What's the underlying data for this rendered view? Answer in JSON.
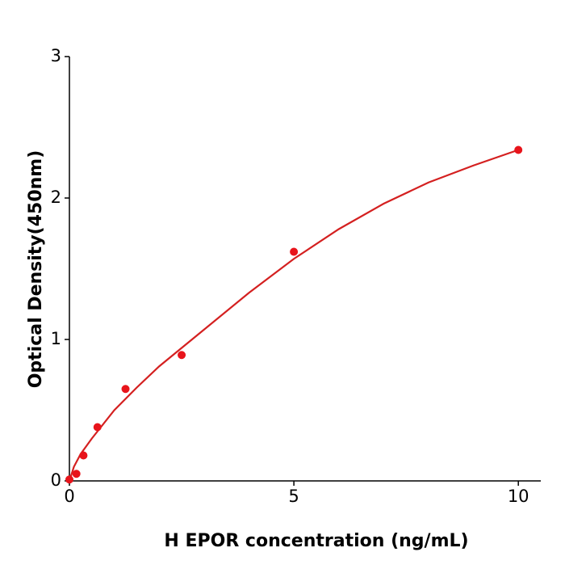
{
  "chart_data": {
    "type": "scatter",
    "x_label": "H  EPOR concentration (ng/mL)",
    "y_label": "Optical Density(450nm)",
    "xlim": [
      0,
      10.5
    ],
    "ylim": [
      0,
      3
    ],
    "xticks": [
      0,
      5,
      10
    ],
    "yticks": [
      0,
      1,
      2,
      3
    ],
    "grid": false,
    "series": [
      {
        "type": "scatter",
        "color": "#e8141b",
        "x": [
          0,
          0.156,
          0.313,
          0.625,
          1.25,
          2.5,
          5,
          10
        ],
        "y": [
          0.01,
          0.05,
          0.18,
          0.38,
          0.65,
          0.89,
          1.62,
          2.34
        ]
      },
      {
        "type": "line",
        "color": "#d42020",
        "x": [
          0,
          0.1,
          0.25,
          0.5,
          1,
          1.5,
          2,
          3,
          4,
          5,
          6,
          7,
          8,
          9,
          10
        ],
        "y": [
          0,
          0.1,
          0.19,
          0.3,
          0.5,
          0.66,
          0.81,
          1.07,
          1.33,
          1.57,
          1.78,
          1.96,
          2.11,
          2.23,
          2.34
        ]
      }
    ]
  }
}
